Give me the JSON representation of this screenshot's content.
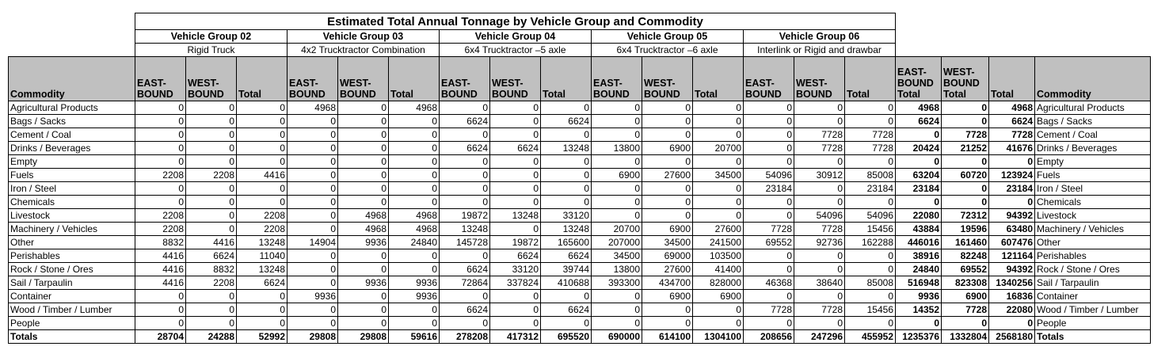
{
  "title": "Estimated Total Annual Tonnage by Vehicle Group and Commodity",
  "groups": [
    {
      "name": "Vehicle Group 02",
      "desc": "Rigid Truck"
    },
    {
      "name": "Vehicle Group 03",
      "desc": "4x2 Trucktractor Combination"
    },
    {
      "name": "Vehicle Group 04",
      "desc": "6x4 Trucktractor –5 axle"
    },
    {
      "name": "Vehicle Group 05",
      "desc": "6x4 Trucktractor –6 axle"
    },
    {
      "name": "Vehicle Group 06",
      "desc": "Interlink or Rigid and drawbar"
    }
  ],
  "headers": {
    "commodity": "Commodity",
    "east": "EAST-BOUND",
    "west": "WEST-BOUND",
    "total": "Total",
    "east_total": "EAST-BOUND Total",
    "west_total": "WEST-BOUND Total",
    "grand_total": "Total",
    "commodity_right": "Commodity"
  },
  "rows": [
    {
      "label": "Agricultural Products",
      "values": [
        0,
        0,
        0,
        4968,
        0,
        4968,
        0,
        0,
        0,
        0,
        0,
        0,
        0,
        0,
        0,
        4968,
        0,
        4968
      ]
    },
    {
      "label": "Bags / Sacks",
      "values": [
        0,
        0,
        0,
        0,
        0,
        0,
        6624,
        0,
        6624,
        0,
        0,
        0,
        0,
        0,
        0,
        6624,
        0,
        6624
      ]
    },
    {
      "label": "Cement / Coal",
      "values": [
        0,
        0,
        0,
        0,
        0,
        0,
        0,
        0,
        0,
        0,
        0,
        0,
        0,
        7728,
        7728,
        0,
        7728,
        7728
      ]
    },
    {
      "label": "Drinks / Beverages",
      "values": [
        0,
        0,
        0,
        0,
        0,
        0,
        6624,
        6624,
        13248,
        13800,
        6900,
        20700,
        0,
        7728,
        7728,
        20424,
        21252,
        41676
      ]
    },
    {
      "label": "Empty",
      "values": [
        0,
        0,
        0,
        0,
        0,
        0,
        0,
        0,
        0,
        0,
        0,
        0,
        0,
        0,
        0,
        0,
        0,
        0
      ]
    },
    {
      "label": "Fuels",
      "values": [
        2208,
        2208,
        4416,
        0,
        0,
        0,
        0,
        0,
        0,
        6900,
        27600,
        34500,
        54096,
        30912,
        85008,
        63204,
        60720,
        123924
      ]
    },
    {
      "label": "Iron / Steel",
      "values": [
        0,
        0,
        0,
        0,
        0,
        0,
        0,
        0,
        0,
        0,
        0,
        0,
        23184,
        0,
        23184,
        23184,
        0,
        23184
      ]
    },
    {
      "label": "Chemicals",
      "values": [
        0,
        0,
        0,
        0,
        0,
        0,
        0,
        0,
        0,
        0,
        0,
        0,
        0,
        0,
        0,
        0,
        0,
        0
      ]
    },
    {
      "label": "Livestock",
      "values": [
        2208,
        0,
        2208,
        0,
        4968,
        4968,
        19872,
        13248,
        33120,
        0,
        0,
        0,
        0,
        54096,
        54096,
        22080,
        72312,
        94392
      ]
    },
    {
      "label": "Machinery / Vehicles",
      "values": [
        2208,
        0,
        2208,
        0,
        4968,
        4968,
        13248,
        0,
        13248,
        20700,
        6900,
        27600,
        7728,
        7728,
        15456,
        43884,
        19596,
        63480
      ]
    },
    {
      "label": "Other",
      "values": [
        8832,
        4416,
        13248,
        14904,
        9936,
        24840,
        145728,
        19872,
        165600,
        207000,
        34500,
        241500,
        69552,
        92736,
        162288,
        446016,
        161460,
        607476
      ]
    },
    {
      "label": "Perishables",
      "values": [
        4416,
        6624,
        11040,
        0,
        0,
        0,
        0,
        6624,
        6624,
        34500,
        69000,
        103500,
        0,
        0,
        0,
        38916,
        82248,
        121164
      ]
    },
    {
      "label": "Rock / Stone / Ores",
      "values": [
        4416,
        8832,
        13248,
        0,
        0,
        0,
        6624,
        33120,
        39744,
        13800,
        27600,
        41400,
        0,
        0,
        0,
        24840,
        69552,
        94392
      ]
    },
    {
      "label": "Sail / Tarpaulin",
      "values": [
        4416,
        2208,
        6624,
        0,
        9936,
        9936,
        72864,
        337824,
        410688,
        393300,
        434700,
        828000,
        46368,
        38640,
        85008,
        516948,
        823308,
        1340256
      ]
    },
    {
      "label": "Container",
      "values": [
        0,
        0,
        0,
        9936,
        0,
        9936,
        0,
        0,
        0,
        0,
        6900,
        6900,
        0,
        0,
        0,
        9936,
        6900,
        16836
      ]
    },
    {
      "label": "Wood / Timber / Lumber",
      "values": [
        0,
        0,
        0,
        0,
        0,
        0,
        6624,
        0,
        6624,
        0,
        0,
        0,
        7728,
        7728,
        15456,
        14352,
        7728,
        22080
      ]
    },
    {
      "label": "People",
      "values": [
        0,
        0,
        0,
        0,
        0,
        0,
        0,
        0,
        0,
        0,
        0,
        0,
        0,
        0,
        0,
        0,
        0,
        0
      ]
    }
  ],
  "totals": {
    "label": "Totals",
    "values": [
      28704,
      24288,
      52992,
      29808,
      29808,
      59616,
      278208,
      417312,
      695520,
      690000,
      614100,
      1304100,
      208656,
      247296,
      455952,
      1235376,
      1332804,
      2568180
    ]
  }
}
